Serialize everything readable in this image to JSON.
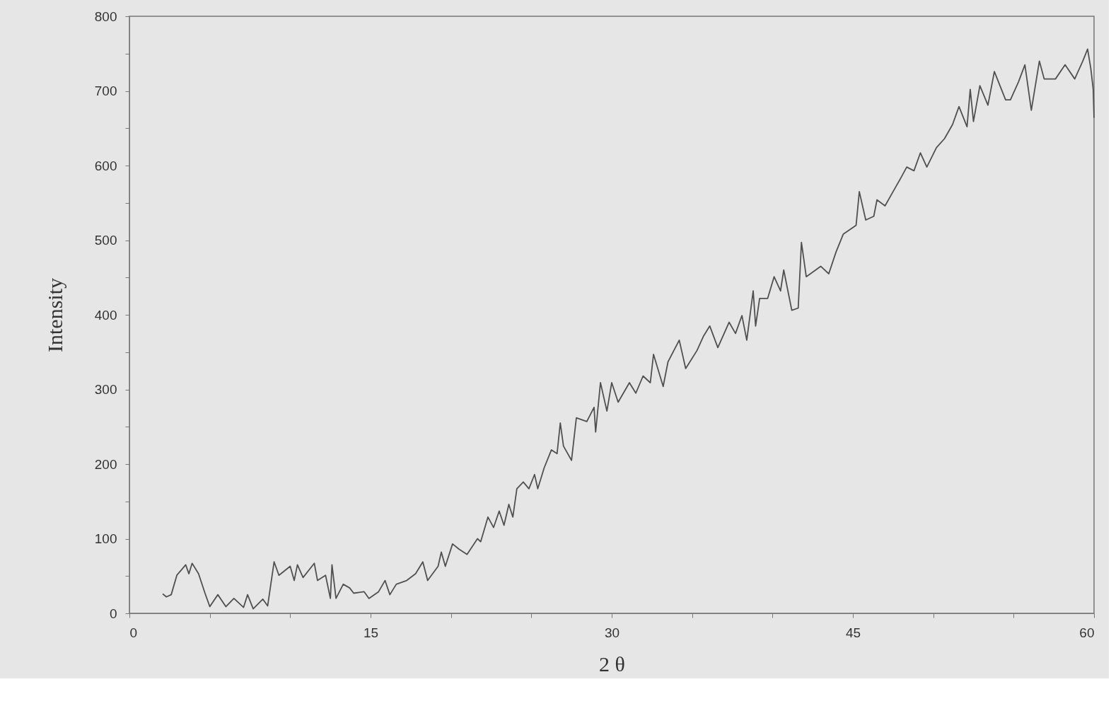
{
  "chart_data": {
    "type": "line",
    "xlabel": "2 θ",
    "ylabel": "Intensity",
    "x": [
      2.07,
      2.3,
      2.6,
      2.95,
      3.5,
      3.7,
      3.9,
      4.3,
      4.7,
      5.0,
      5.5,
      6.0,
      6.5,
      7.1,
      7.35,
      7.7,
      8.3,
      8.6,
      9.0,
      9.3,
      10.0,
      10.25,
      10.45,
      10.8,
      11.5,
      11.7,
      12.2,
      12.5,
      12.6,
      12.85,
      13.3,
      13.7,
      13.95,
      14.6,
      14.9,
      15.5,
      15.9,
      16.2,
      16.6,
      17.25,
      17.8,
      18.25,
      18.55,
      19.2,
      19.4,
      19.65,
      20.1,
      20.5,
      21.0,
      21.65,
      21.85,
      22.3,
      22.65,
      23.0,
      23.3,
      23.6,
      23.85,
      24.1,
      24.5,
      24.85,
      25.2,
      25.4,
      25.8,
      26.25,
      26.6,
      26.8,
      27.0,
      27.5,
      27.8,
      28.45,
      28.9,
      29.0,
      29.3,
      29.7,
      30.0,
      30.4,
      31.1,
      31.5,
      31.95,
      32.4,
      32.6,
      33.2,
      33.5,
      34.2,
      34.6,
      35.3,
      35.7,
      36.1,
      36.6,
      37.3,
      37.7,
      38.1,
      38.4,
      38.8,
      38.95,
      39.2,
      39.7,
      40.1,
      40.5,
      40.7,
      41.2,
      41.6,
      41.8,
      42.1,
      43.0,
      43.5,
      43.95,
      44.4,
      45.2,
      45.4,
      45.8,
      46.3,
      46.5,
      47.0,
      47.5,
      48.0,
      48.35,
      48.8,
      49.2,
      49.6,
      50.2,
      50.7,
      51.2,
      51.6,
      52.1,
      52.3,
      52.5,
      52.9,
      53.4,
      53.8,
      54.5,
      54.8,
      55.3,
      55.7,
      56.1,
      56.6,
      56.9,
      57.6,
      58.2,
      58.8,
      59.3,
      59.6,
      59.8,
      59.95,
      60.0
    ],
    "series": [
      {
        "color": "#505050",
        "values": [
          26,
          22,
          25,
          51,
          65,
          53,
          67,
          53,
          27,
          9,
          25,
          9,
          20,
          8,
          25,
          6,
          19,
          10,
          69,
          51,
          63,
          44,
          65,
          48,
          67,
          44,
          51,
          20,
          65,
          20,
          39,
          34,
          27,
          29,
          20,
          29,
          44,
          25,
          39,
          44,
          53,
          69,
          44,
          63,
          82,
          63,
          93,
          86,
          79,
          100,
          96,
          129,
          115,
          137,
          118,
          146,
          129,
          167,
          176,
          167,
          186,
          167,
          195,
          219,
          214,
          255,
          224,
          205,
          262,
          257,
          276,
          243,
          309,
          271,
          309,
          283,
          309,
          295,
          318,
          309,
          347,
          304,
          337,
          366,
          328,
          352,
          371,
          385,
          356,
          390,
          375,
          399,
          366,
          432,
          385,
          422,
          422,
          451,
          432,
          460,
          406,
          409,
          497,
          451,
          465,
          455,
          484,
          508,
          520,
          565,
          527,
          532,
          554,
          546,
          565,
          584,
          598,
          593,
          617,
          598,
          624,
          636,
          655,
          679,
          652,
          702,
          659,
          707,
          681,
          726,
          688,
          688,
          712,
          735,
          674,
          740,
          716,
          716,
          735,
          716,
          740,
          756,
          730,
          702,
          664
        ]
      }
    ],
    "xlim": [
      0,
      60
    ],
    "ylim": [
      0,
      800
    ],
    "xticks": [
      0,
      {
        "value": 5,
        "label": null
      },
      {
        "value": 10,
        "label": null
      },
      15,
      {
        "value": 20,
        "label": null
      },
      {
        "value": 25,
        "label": null
      },
      30,
      {
        "value": 35,
        "label": null
      },
      {
        "value": 40,
        "label": null
      },
      45,
      {
        "value": 50,
        "label": null
      },
      {
        "value": 55,
        "label": null
      },
      60
    ],
    "yticks": [
      0,
      {
        "value": 50,
        "label": null
      },
      100,
      {
        "value": 150,
        "label": null
      },
      200,
      {
        "value": 250,
        "label": null
      },
      300,
      {
        "value": 350,
        "label": null
      },
      400,
      {
        "value": 450,
        "label": null
      },
      500,
      {
        "value": 550,
        "label": null
      },
      600,
      {
        "value": 650,
        "label": null
      },
      700,
      {
        "value": 750,
        "label": null
      },
      800
    ],
    "grid": false,
    "marker": "none",
    "line_style": "solid"
  }
}
